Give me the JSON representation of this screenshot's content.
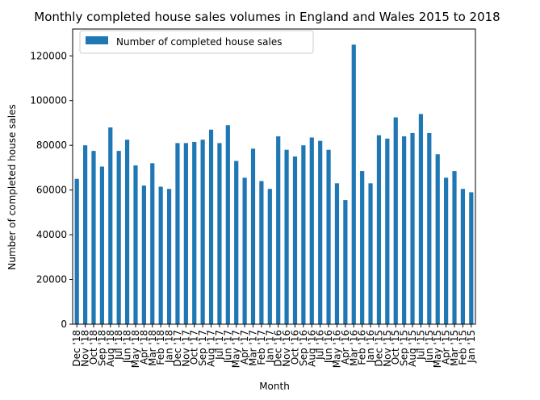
{
  "chart_data": {
    "type": "bar",
    "title": "Monthly completed house sales volumes in England and Wales 2015 to 2018",
    "xlabel": "Month",
    "ylabel": "Number of completed house sales",
    "ylim": [
      0,
      132000
    ],
    "yticks": [
      0,
      20000,
      40000,
      60000,
      80000,
      100000,
      120000
    ],
    "legend_position": "top-left",
    "grid": false,
    "bar_color": "#1f77b4",
    "series": [
      {
        "name": "Number of completed house sales",
        "values": [
          65000,
          80000,
          77500,
          70500,
          88000,
          77500,
          82500,
          71000,
          62000,
          72000,
          61500,
          60500,
          81000,
          81000,
          81500,
          82500,
          87000,
          81000,
          89000,
          73000,
          65500,
          78500,
          64000,
          60500,
          84000,
          78000,
          75000,
          80000,
          83500,
          82000,
          78000,
          63000,
          55500,
          125000,
          68500,
          63000,
          84500,
          83000,
          92500,
          84000,
          85500,
          94000,
          85500,
          76000,
          65500,
          68500,
          60500,
          59000
        ]
      }
    ],
    "categories": [
      "Dec '18",
      "Nov '18",
      "Oct '18",
      "Sep '18",
      "Aug '18",
      "Jul '18",
      "Jun '18",
      "May '18",
      "Apr '18",
      "Mar '18",
      "Feb '18",
      "Jan '18",
      "Dec '17",
      "Nov '17",
      "Oct '17",
      "Sep '17",
      "Aug '17",
      "Jul '17",
      "Jun '17",
      "May '17",
      "Apr '17",
      "Mar '17",
      "Feb '17",
      "Jan '17",
      "Dec '16",
      "Nov '16",
      "Oct '16",
      "Sep '16",
      "Aug '16",
      "Jul '16",
      "Jun '16",
      "May '16",
      "Apr '16",
      "Mar '16",
      "Feb '16",
      "Jan '16",
      "Dec '15",
      "Nov '15",
      "Oct '15",
      "Sep '15",
      "Aug '15",
      "Jul '15",
      "Jun '15",
      "May '15",
      "Apr '15",
      "Mar '15",
      "Feb '15",
      "Jan '15"
    ]
  }
}
